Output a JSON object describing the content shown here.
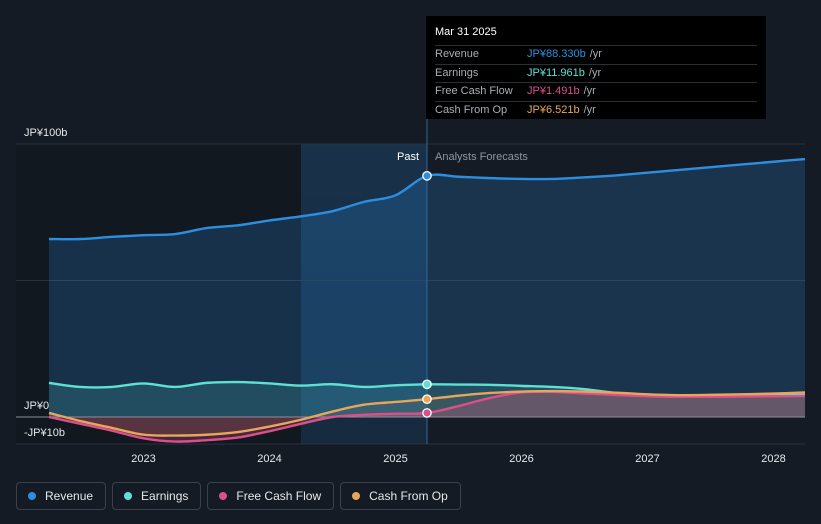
{
  "tooltip": {
    "date": "Mar 31 2025",
    "rows": [
      {
        "name": "Revenue",
        "value": "JP¥88.330b",
        "unit": "/yr",
        "color": "#2d8ee0"
      },
      {
        "name": "Earnings",
        "value": "JP¥11.961b",
        "unit": "/yr",
        "color": "#5ee1d3"
      },
      {
        "name": "Free Cash Flow",
        "value": "JP¥1.491b",
        "unit": "/yr",
        "color": "#d9508b"
      },
      {
        "name": "Cash From Op",
        "value": "JP¥6.521b",
        "unit": "/yr",
        "color": "#e8a65a"
      }
    ]
  },
  "sections": {
    "past": "Past",
    "forecast": "Analysts Forecasts"
  },
  "legend": [
    {
      "label": "Revenue",
      "color": "#2d8ee0"
    },
    {
      "label": "Earnings",
      "color": "#5ee1d3"
    },
    {
      "label": "Free Cash Flow",
      "color": "#d9508b"
    },
    {
      "label": "Cash From Op",
      "color": "#e8a65a"
    }
  ],
  "chart_data": {
    "type": "line",
    "title": "",
    "xlabel": "",
    "ylabel": "",
    "unit": "JP¥ billions",
    "ylim": [
      -10,
      100
    ],
    "xlim": [
      2022.25,
      2028.25
    ],
    "y_tick_labels": [
      "JP¥100b",
      "JP¥0",
      "-JP¥10b"
    ],
    "y_tick_values": [
      100,
      0,
      -10
    ],
    "x_ticks": [
      2023,
      2024,
      2025,
      2026,
      2027,
      2028
    ],
    "x_tick_labels": [
      "2023",
      "2024",
      "2025",
      "2026",
      "2027",
      "2028"
    ],
    "past_end": 2025.25,
    "highlight_start": 2024.25,
    "series": [
      {
        "name": "Revenue",
        "color": "#2d8ee0",
        "x": [
          2022.25,
          2022.5,
          2022.75,
          2023.0,
          2023.25,
          2023.5,
          2023.75,
          2024.0,
          2024.25,
          2024.5,
          2024.75,
          2025.0,
          2025.25,
          2025.5,
          2025.75,
          2026.0,
          2026.25,
          2026.5,
          2026.75,
          2027.0,
          2027.25,
          2027.5,
          2027.75,
          2028.0,
          2028.25
        ],
        "values": [
          65.2,
          65.2,
          66.0,
          66.6,
          67.0,
          69.2,
          70.2,
          72.0,
          73.5,
          75.4,
          78.8,
          81.2,
          88.33,
          88.0,
          87.5,
          87.2,
          87.2,
          87.8,
          88.5,
          89.5,
          90.5,
          91.5,
          92.5,
          93.5,
          94.5
        ]
      },
      {
        "name": "Earnings",
        "color": "#5ee1d3",
        "x": [
          2022.25,
          2022.5,
          2022.75,
          2023.0,
          2023.25,
          2023.5,
          2023.75,
          2024.0,
          2024.25,
          2024.5,
          2024.75,
          2025.0,
          2025.25,
          2025.5,
          2025.75,
          2026.0,
          2026.25,
          2026.5,
          2026.75,
          2027.0,
          2027.25,
          2027.5,
          2027.75,
          2028.0,
          2028.25
        ],
        "values": [
          12.5,
          11.0,
          11.0,
          12.3,
          11.0,
          12.5,
          12.8,
          12.3,
          11.5,
          12.0,
          11.0,
          11.6,
          11.96,
          11.9,
          11.8,
          11.4,
          11.0,
          10.2,
          8.8,
          8.0,
          7.8,
          7.8,
          7.9,
          8.0,
          8.1
        ]
      },
      {
        "name": "Free Cash Flow",
        "color": "#d9508b",
        "x": [
          2022.25,
          2022.5,
          2022.75,
          2023.0,
          2023.25,
          2023.5,
          2023.75,
          2024.0,
          2024.25,
          2024.5,
          2024.75,
          2025.0,
          2025.25,
          2025.5,
          2025.75,
          2026.0,
          2026.25,
          2026.5,
          2026.75,
          2027.0,
          2027.25,
          2027.5,
          2027.75,
          2028.0,
          2028.25
        ],
        "values": [
          0,
          -2.5,
          -5.0,
          -7.8,
          -9.0,
          -8.5,
          -7.5,
          -5.2,
          -2.5,
          0,
          0.8,
          1.2,
          1.49,
          4.0,
          7.0,
          9.0,
          9.2,
          8.6,
          8.1,
          7.6,
          7.4,
          7.4,
          7.5,
          7.6,
          7.7
        ]
      },
      {
        "name": "Cash From Op",
        "color": "#e8a65a",
        "x": [
          2022.25,
          2022.5,
          2022.75,
          2023.0,
          2023.25,
          2023.5,
          2023.75,
          2024.0,
          2024.25,
          2024.5,
          2024.75,
          2025.0,
          2025.25,
          2025.5,
          2025.75,
          2026.0,
          2026.25,
          2026.5,
          2026.75,
          2027.0,
          2027.25,
          2027.5,
          2027.75,
          2028.0,
          2028.25
        ],
        "values": [
          1.5,
          -1.5,
          -4.0,
          -6.5,
          -6.8,
          -6.5,
          -5.5,
          -3.5,
          -1.0,
          2.0,
          4.5,
          5.5,
          6.52,
          7.8,
          8.8,
          9.3,
          9.5,
          9.3,
          8.9,
          8.3,
          8.0,
          8.1,
          8.3,
          8.6,
          9.0
        ]
      }
    ],
    "markers": [
      {
        "series": "Revenue",
        "x": 2025.25,
        "y": 88.33
      },
      {
        "series": "Earnings",
        "x": 2025.25,
        "y": 11.96
      },
      {
        "series": "Free Cash Flow",
        "x": 2025.25,
        "y": 1.49
      },
      {
        "series": "Cash From Op",
        "x": 2025.25,
        "y": 6.52
      }
    ]
  }
}
